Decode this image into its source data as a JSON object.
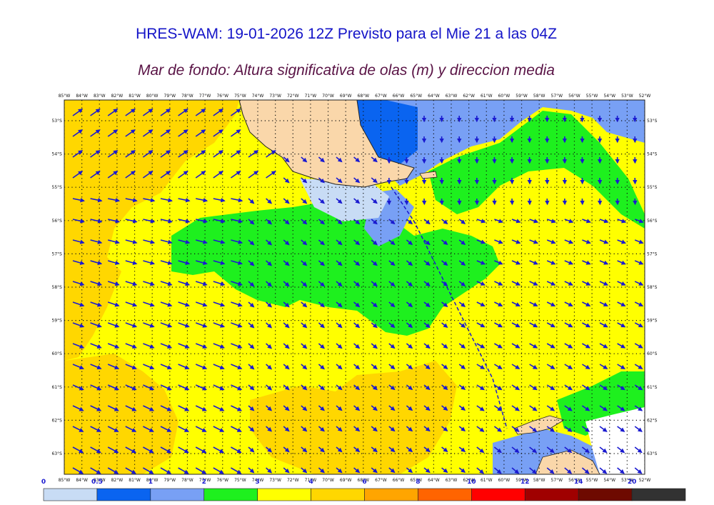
{
  "title": "HRES-WAM: 19-01-2026 12Z Previsto para el Mie 21 a las 04Z",
  "subtitle": "Mar de fondo: Altura significativa de olas (m) y direccion media",
  "map": {
    "lon_labels": [
      "85°W",
      "84°W",
      "83°W",
      "82°W",
      "81°W",
      "80°W",
      "79°W",
      "78°W",
      "77°W",
      "76°W",
      "75°W",
      "74°W",
      "73°W",
      "72°W",
      "71°W",
      "70°W",
      "69°W",
      "68°W",
      "67°W",
      "66°W",
      "65°W",
      "64°W",
      "63°W",
      "62°W",
      "61°W",
      "60°W",
      "59°W",
      "58°W",
      "57°W",
      "56°W",
      "55°W",
      "54°W",
      "53°W",
      "52°W"
    ],
    "lat_labels": [
      "53°S",
      "54°S",
      "55°S",
      "56°S",
      "57°S",
      "58°S",
      "59°S",
      "60°S",
      "61°S",
      "62°S",
      "63°S"
    ],
    "colors": {
      "sea_ocean": "#ffff00",
      "land": "#fad7aa",
      "arrow": "#1a1ad0"
    }
  },
  "colorbar": {
    "ticks": [
      "0",
      "0.5",
      "1",
      "2",
      "3",
      "4",
      "6",
      "8",
      "10",
      "12",
      "14",
      "20"
    ],
    "colors": [
      "#c8dcf5",
      "#0a64f0",
      "#78a0f5",
      "#1ef01e",
      "#ffff00",
      "#ffd700",
      "#ffa500",
      "#ff6400",
      "#ff0000",
      "#a00000",
      "#6e0a00",
      "#323232"
    ]
  }
}
